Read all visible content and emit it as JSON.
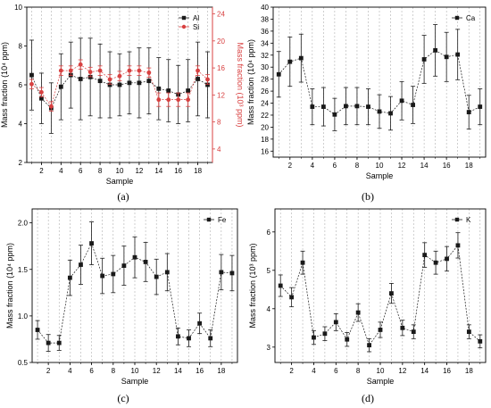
{
  "figure": {
    "panels": [
      {
        "id": "a",
        "label": "(a)"
      },
      {
        "id": "b",
        "label": "(b)"
      },
      {
        "id": "c",
        "label": "(c)"
      },
      {
        "id": "d",
        "label": "(d)"
      }
    ]
  },
  "colors": {
    "black_series": "#1a1a1a",
    "red_series": "#d84040",
    "red_axis": "#d84040",
    "gridline": "#b0b0b0"
  },
  "chart_data": [
    {
      "panel": "a",
      "type": "line",
      "xlabel": "Sample",
      "ylabel": "Mass fraction (10⁴ ppm)",
      "ylabel_right": "Mass fraction (10³ ppm)",
      "x": [
        1,
        2,
        3,
        4,
        5,
        6,
        7,
        8,
        9,
        10,
        11,
        12,
        13,
        14,
        15,
        16,
        17,
        18,
        19
      ],
      "xlim": [
        0.5,
        19.5
      ],
      "xticks": [
        2,
        4,
        6,
        8,
        10,
        12,
        14,
        16,
        18
      ],
      "ylim": [
        2,
        10
      ],
      "yticks": [
        2,
        4,
        6,
        8,
        10
      ],
      "ylim_right": [
        2,
        25
      ],
      "yticks_right": [
        4,
        8,
        12,
        16,
        20,
        24
      ],
      "vertical_gridlines": true,
      "legend_position": "top-right",
      "series": [
        {
          "name": "Al",
          "axis": "left",
          "marker": "square",
          "color": "#1a1a1a",
          "values": [
            6.5,
            5.3,
            4.8,
            5.9,
            6.5,
            6.3,
            6.4,
            6.2,
            6.0,
            6.0,
            6.1,
            6.1,
            6.2,
            5.8,
            5.7,
            5.5,
            5.7,
            6.3,
            6.0
          ],
          "errors": [
            1.8,
            1.3,
            1.3,
            1.7,
            1.7,
            2.1,
            2.0,
            1.9,
            1.7,
            1.6,
            1.6,
            1.8,
            1.7,
            1.6,
            1.6,
            1.5,
            1.6,
            1.9,
            1.7
          ]
        },
        {
          "name": "Si",
          "axis": "right",
          "marker": "circle",
          "color": "#d84040",
          "values": [
            13.6,
            12.4,
            10.3,
            15.6,
            15.6,
            16.5,
            15.4,
            15.6,
            14.3,
            14.8,
            15.6,
            15.6,
            15.3,
            11.3,
            11.3,
            11.3,
            11.3,
            15.6,
            14.3
          ],
          "errors": [
            0.7,
            0.7,
            0.7,
            0.7,
            0.7,
            0.7,
            0.7,
            0.7,
            0.7,
            0.7,
            0.7,
            0.7,
            0.7,
            1.0,
            1.0,
            1.0,
            1.0,
            0.7,
            0.7
          ]
        }
      ]
    },
    {
      "panel": "b",
      "type": "line",
      "xlabel": "Sample",
      "ylabel": "Mass fraction (10⁴ ppm)",
      "x": [
        1,
        2,
        3,
        4,
        5,
        6,
        7,
        8,
        9,
        10,
        11,
        12,
        13,
        14,
        15,
        16,
        17,
        18,
        19
      ],
      "xlim": [
        0.5,
        19.5
      ],
      "xticks": [
        2,
        4,
        6,
        8,
        10,
        12,
        14,
        16,
        18
      ],
      "ylim": [
        15,
        40
      ],
      "yticks": [
        16,
        18,
        20,
        22,
        24,
        26,
        28,
        30,
        32,
        34,
        36,
        38,
        40
      ],
      "vertical_gridlines": true,
      "legend_position": "top-right",
      "series": [
        {
          "name": "Ca",
          "marker": "square",
          "color": "#1a1a1a",
          "values": [
            28.8,
            30.9,
            31.5,
            23.4,
            23.4,
            22.1,
            23.5,
            23.5,
            23.4,
            22.6,
            22.3,
            24.4,
            23.7,
            31.3,
            32.8,
            31.7,
            32.1,
            22.5,
            23.4
          ],
          "errors": [
            3.8,
            4.1,
            4.0,
            3.0,
            3.2,
            2.7,
            3.1,
            3.1,
            3.0,
            2.8,
            2.8,
            3.2,
            3.1,
            4.0,
            4.3,
            4.1,
            4.2,
            2.8,
            3.0
          ]
        }
      ]
    },
    {
      "panel": "c",
      "type": "line",
      "xlabel": "Sample",
      "ylabel": "Mass fraction (10⁴ ppm)",
      "x": [
        1,
        2,
        3,
        4,
        5,
        6,
        7,
        8,
        9,
        10,
        11,
        12,
        13,
        14,
        15,
        16,
        17,
        18,
        19
      ],
      "xlim": [
        0.5,
        19.5
      ],
      "xticks": [
        2,
        4,
        6,
        8,
        10,
        12,
        14,
        16,
        18
      ],
      "ylim": [
        0.5,
        2.15
      ],
      "yticks": [
        0.5,
        1.0,
        1.5,
        2.0
      ],
      "vertical_gridlines": true,
      "legend_position": "top-right",
      "series": [
        {
          "name": "Fe",
          "marker": "square",
          "color": "#1a1a1a",
          "values": [
            0.85,
            0.71,
            0.71,
            1.41,
            1.55,
            1.78,
            1.43,
            1.45,
            1.54,
            1.63,
            1.58,
            1.42,
            1.47,
            0.78,
            0.76,
            0.92,
            0.76,
            1.47,
            1.46
          ],
          "errors": [
            0.1,
            0.09,
            0.08,
            0.19,
            0.21,
            0.23,
            0.19,
            0.2,
            0.21,
            0.22,
            0.21,
            0.19,
            0.2,
            0.09,
            0.09,
            0.11,
            0.09,
            0.19,
            0.19
          ]
        }
      ]
    },
    {
      "panel": "d",
      "type": "line",
      "xlabel": "Sample",
      "ylabel": "Mass fraction (10³ ppm)",
      "x": [
        1,
        2,
        3,
        4,
        5,
        6,
        7,
        8,
        9,
        10,
        11,
        12,
        13,
        14,
        15,
        16,
        17,
        18,
        19
      ],
      "xlim": [
        0.5,
        19.5
      ],
      "xticks": [
        2,
        4,
        6,
        8,
        10,
        12,
        14,
        16,
        18
      ],
      "ylim": [
        2.6,
        6.6
      ],
      "yticks": [
        3,
        4,
        5,
        6
      ],
      "vertical_gridlines": true,
      "legend_position": "top-right",
      "series": [
        {
          "name": "K",
          "marker": "square",
          "color": "#1a1a1a",
          "values": [
            4.6,
            4.3,
            5.2,
            3.25,
            3.35,
            3.65,
            3.2,
            3.9,
            3.05,
            3.45,
            4.4,
            3.5,
            3.4,
            5.4,
            5.2,
            5.3,
            5.65,
            3.4,
            3.15
          ],
          "errors": [
            0.28,
            0.25,
            0.3,
            0.18,
            0.18,
            0.22,
            0.18,
            0.23,
            0.17,
            0.2,
            0.26,
            0.2,
            0.18,
            0.32,
            0.3,
            0.32,
            0.33,
            0.18,
            0.17
          ]
        }
      ]
    }
  ]
}
